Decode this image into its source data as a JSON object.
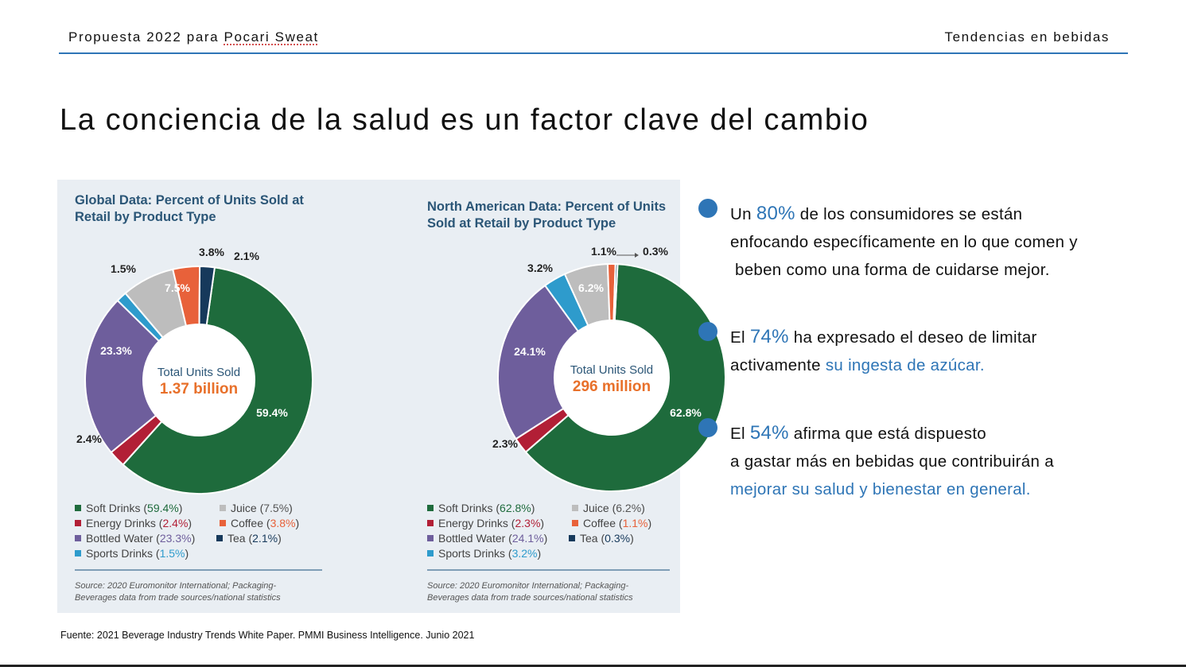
{
  "header": {
    "prefix": "Propuesta 2022 para ",
    "brand": "Pocari Sweat",
    "right": "Tendencias en bebidas"
  },
  "title": "La conciencia de la salud es un factor clave del cambio",
  "chart_data": [
    {
      "type": "pie",
      "title_lines": [
        "Global Data: Percent of Units Sold at",
        "Retail by Product Type"
      ],
      "center_label": "Total Units Sold",
      "center_value": "1.37 billion",
      "slices": [
        {
          "name": "Soft Drinks",
          "value": 59.4,
          "color": "#1e6b3c",
          "label": "59.4%",
          "pct_text": "59.4%",
          "pct_color": "#1e6b3c"
        },
        {
          "name": "Energy Drinks",
          "value": 2.4,
          "color": "#b21f36",
          "label": "2.4%",
          "pct_text": "2.4%",
          "pct_color": "#b21f36"
        },
        {
          "name": "Bottled Water",
          "value": 23.3,
          "color": "#6e5e9c",
          "label": "23.3%",
          "pct_text": "23.3%",
          "pct_color": "#6e5e9c"
        },
        {
          "name": "Sports Drinks",
          "value": 1.5,
          "color": "#2e9bcc",
          "label": "1.5%",
          "pct_text": "1.5%",
          "pct_color": "#2e9bcc"
        },
        {
          "name": "Juice",
          "value": 7.5,
          "color": "#bdbdbd",
          "label": "7.5%",
          "pct_text": "7.5%",
          "pct_color": "#555555"
        },
        {
          "name": "Coffee",
          "value": 3.8,
          "color": "#e8613a",
          "label": "3.8%",
          "pct_text": "3.8%",
          "pct_color": "#e8613a"
        },
        {
          "name": "Tea",
          "value": 2.1,
          "color": "#16395b",
          "label": "2.1%",
          "pct_text": "2.1%",
          "pct_color": "#16395b"
        }
      ],
      "source_lines": [
        "Source: 2020 Euromonitor International; Packaging-",
        "Beverages data from trade sources/national statistics"
      ]
    },
    {
      "type": "pie",
      "title_lines": [
        "North American Data: Percent of Units",
        "Sold at Retail by Product Type"
      ],
      "center_label": "Total Units Sold",
      "center_value": "296 million",
      "slices": [
        {
          "name": "Soft Drinks",
          "value": 62.8,
          "color": "#1e6b3c",
          "label": "62.8%",
          "pct_text": "62.8%",
          "pct_color": "#1e6b3c"
        },
        {
          "name": "Energy Drinks",
          "value": 2.3,
          "color": "#b21f36",
          "label": "2.3%",
          "pct_text": "2.3%",
          "pct_color": "#b21f36"
        },
        {
          "name": "Bottled Water",
          "value": 24.1,
          "color": "#6e5e9c",
          "label": "24.1%",
          "pct_text": "24.1%",
          "pct_color": "#6e5e9c"
        },
        {
          "name": "Sports Drinks",
          "value": 3.2,
          "color": "#2e9bcc",
          "label": "3.2%",
          "pct_text": "3.2%",
          "pct_color": "#2e9bcc"
        },
        {
          "name": "Juice",
          "value": 6.2,
          "color": "#bdbdbd",
          "label": "6.2%",
          "pct_text": "6.2%",
          "pct_color": "#555555"
        },
        {
          "name": "Coffee",
          "value": 1.1,
          "color": "#e8613a",
          "label": "1.1%",
          "pct_text": "1.1%",
          "pct_color": "#e8613a"
        },
        {
          "name": "Tea",
          "value": 0.3,
          "color": "#16395b",
          "label": "0.3%",
          "pct_text": "0.3%",
          "pct_color": "#16395b"
        }
      ],
      "source_lines": [
        "Source: 2020 Euromonitor International; Packaging-",
        "Beverages data from trade sources/national statistics"
      ]
    }
  ],
  "bullets": [
    {
      "lines": [
        [
          {
            "t": "Un "
          },
          {
            "t": "80%",
            "hl": true,
            "big": true
          },
          {
            "t": " de los consumidores se están"
          }
        ],
        [
          {
            "t": "enfocando específicamente en lo que comen y"
          }
        ],
        [
          {
            "t": " beben como una forma de cuidarse mejor."
          }
        ]
      ]
    },
    {
      "lines": [
        [
          {
            "t": "El "
          },
          {
            "t": "74%",
            "hl": true,
            "big": true
          },
          {
            "t": " ha expresado el deseo de limitar"
          }
        ],
        [
          {
            "t": "activamente "
          },
          {
            "t": "su ingesta de azúcar.",
            "hl": true
          }
        ]
      ]
    },
    {
      "lines": [
        [
          {
            "t": "El "
          },
          {
            "t": "54%",
            "hl": true,
            "big": true
          },
          {
            "t": " afirma que está dispuesto"
          }
        ],
        [
          {
            "t": "a gastar más en bebidas que contribuirán a"
          }
        ],
        [
          {
            "t": "mejorar su salud y bienestar en general.",
            "hl": true
          }
        ]
      ]
    }
  ],
  "footer": "Fuente: 2021 Beverage Industry Trends White Paper. PMMI Business Intelligence. Junio 2021",
  "colors": {
    "accent": "#2e75b6",
    "panel": "#e9eef3",
    "title_blue": "#2b5677",
    "center_orange": "#e8702a"
  }
}
